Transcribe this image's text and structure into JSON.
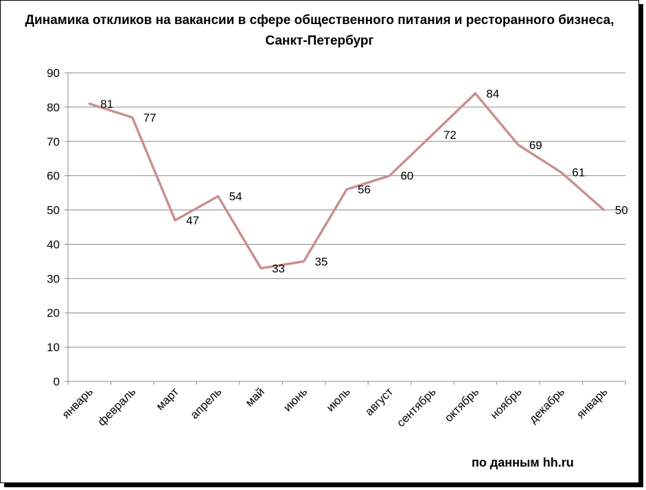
{
  "title_line1": "Динамика откликов на вакансии в сфере общественного питания и ресторанного бизнеса,",
  "title_line2": "Санкт-Петербург",
  "source_note": "по данным hh.ru",
  "chart_data": {
    "type": "line",
    "categories": [
      "январь",
      "февраль",
      "март",
      "апрель",
      "май",
      "июнь",
      "июль",
      "август",
      "сентябрь",
      "октябрь",
      "ноябрь",
      "декабрь",
      "январь"
    ],
    "series": [
      {
        "values": [
          81,
          77,
          47,
          54,
          33,
          35,
          56,
          60,
          72,
          84,
          69,
          61,
          50
        ],
        "color": "#c9908f"
      }
    ],
    "y_ticks": [
      "0",
      "10",
      "20",
      "30",
      "40",
      "50",
      "60",
      "70",
      "80",
      "90"
    ],
    "ylim": [
      0,
      90
    ],
    "grid": true,
    "legend": "none"
  }
}
